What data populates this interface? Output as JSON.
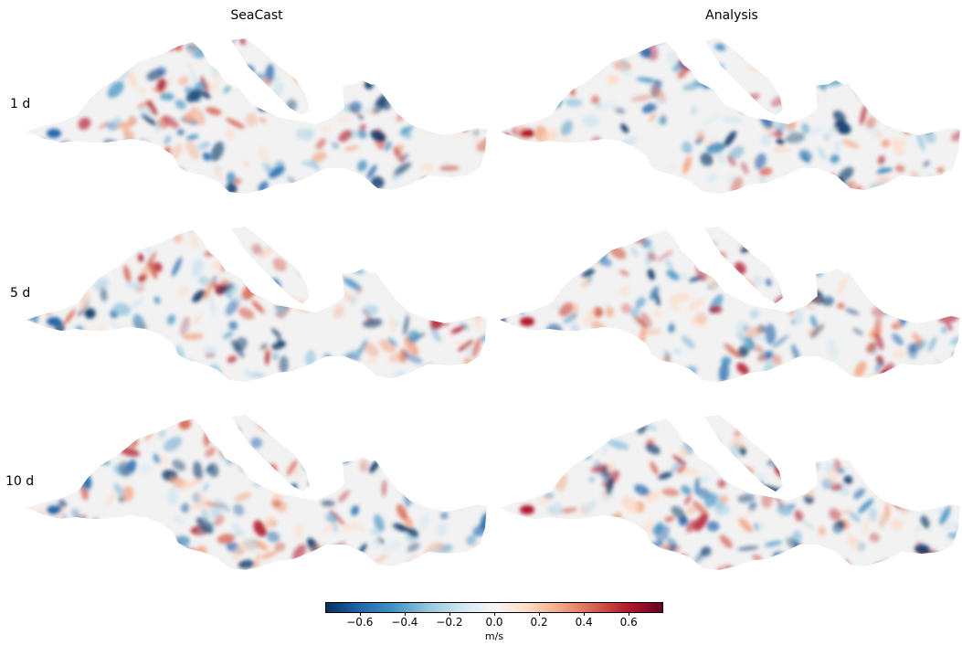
{
  "columns": [
    "SeaCast",
    "Analysis"
  ],
  "rows": [
    "1 d",
    "5 d",
    "10 d"
  ],
  "colorbar": {
    "min": -0.75,
    "max": 0.75,
    "ticks": [
      "−0.6",
      "−0.4",
      "−0.2",
      "0.0",
      "0.2",
      "0.4",
      "0.6"
    ],
    "tick_values": [
      -0.6,
      -0.4,
      -0.2,
      0.0,
      0.2,
      0.4,
      0.6
    ],
    "units": "m/s",
    "colormap": [
      "#053061",
      "#2166ac",
      "#4393c3",
      "#92c5de",
      "#d1e5f0",
      "#f7f7f7",
      "#fddbc7",
      "#f4a582",
      "#d6604d",
      "#b2182b",
      "#67001f"
    ]
  }
}
